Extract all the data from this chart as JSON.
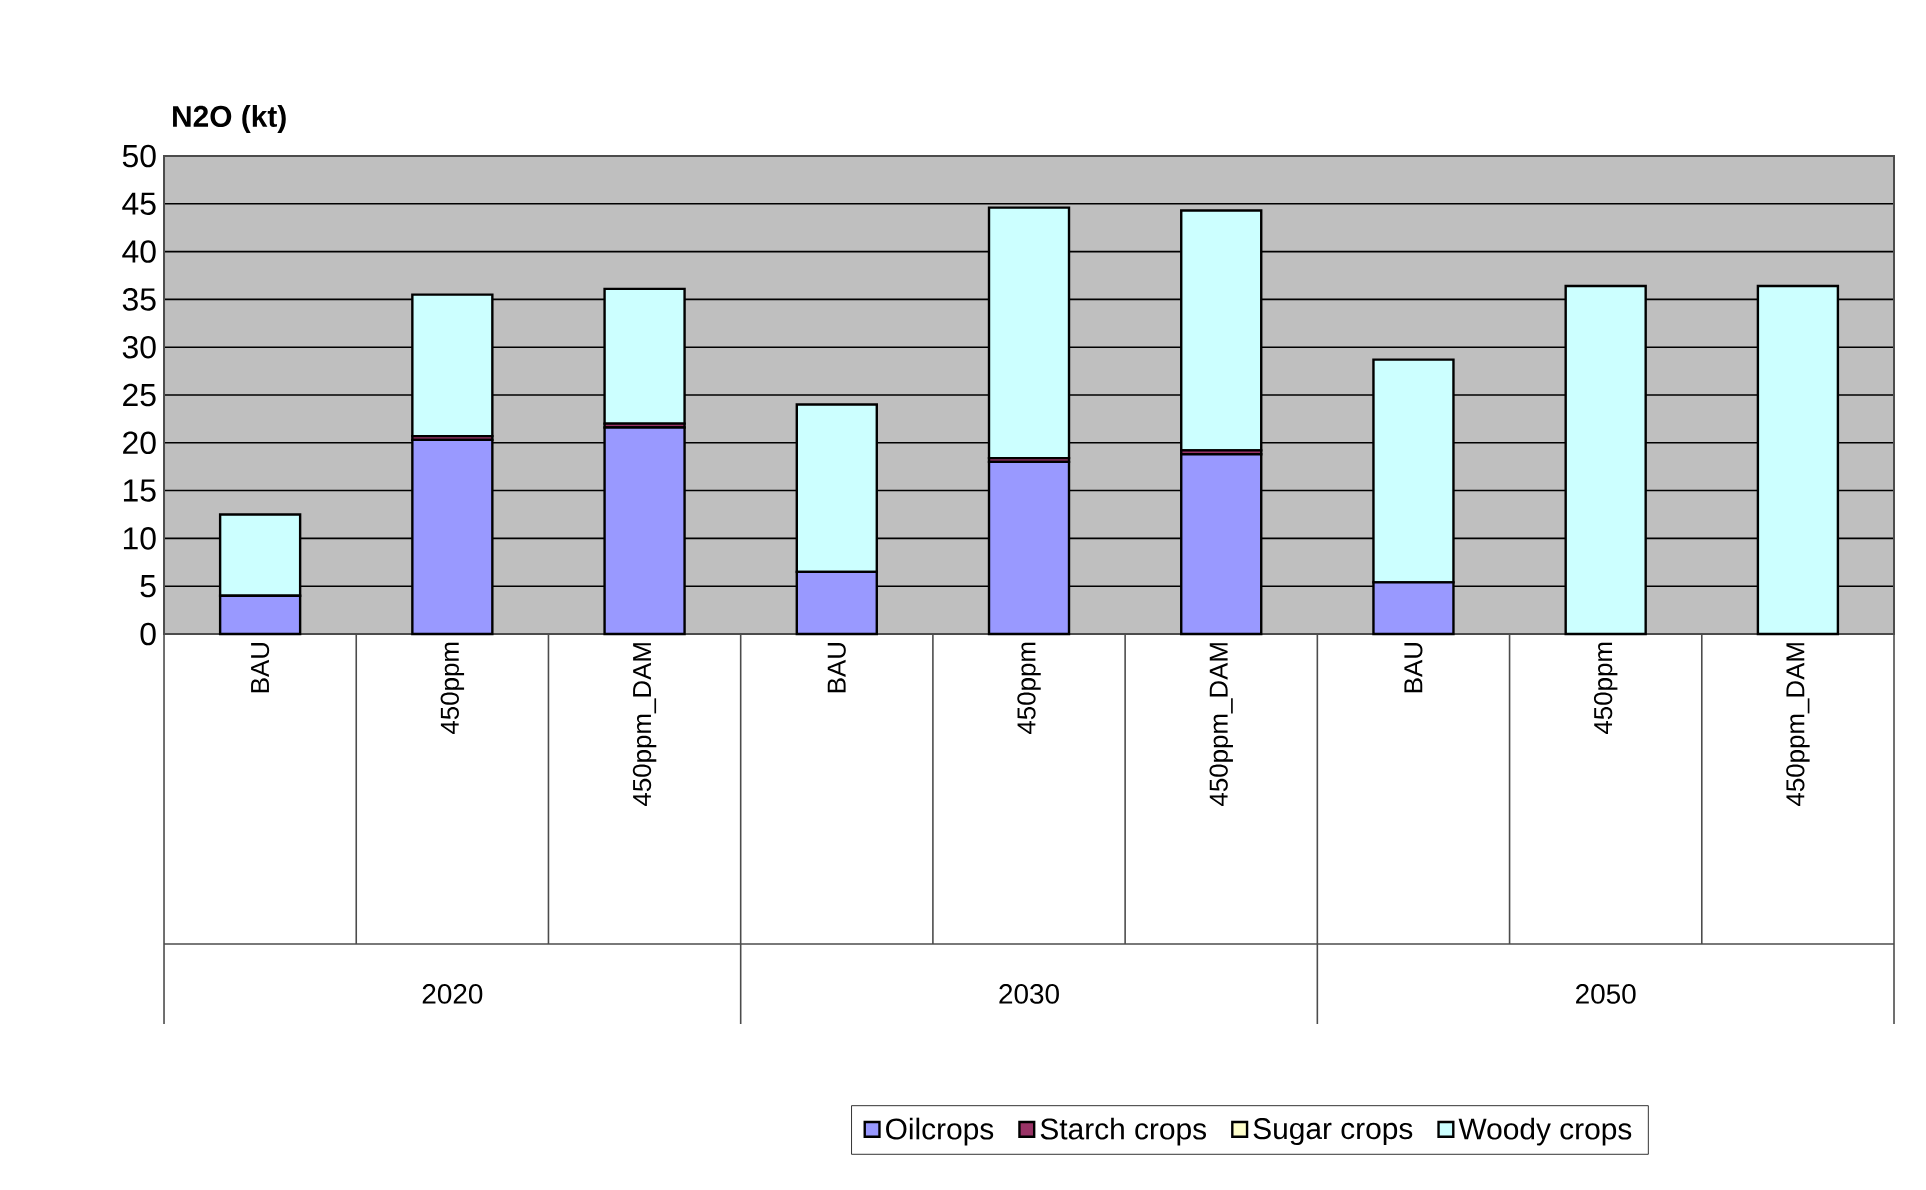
{
  "chart_data": {
    "type": "bar",
    "stacked": true,
    "ylabel": "N2O (kt)",
    "categories": [
      "BAU",
      "450ppm",
      "450ppm_DAM",
      "BAU",
      "450ppm",
      "450ppm_DAM",
      "BAU",
      "450ppm",
      "450ppm_DAM"
    ],
    "annotations": [
      "2020",
      "2030",
      "2050"
    ],
    "series": [
      {
        "name": "Oilcrops",
        "color": "#9999ff",
        "values": [
          4.0,
          20.3,
          21.6,
          6.5,
          18.0,
          18.8,
          5.4,
          0,
          0
        ]
      },
      {
        "name": "Starch crops",
        "color": "#993366",
        "values": [
          0,
          0.4,
          0.4,
          0,
          0.4,
          0.4,
          0,
          0,
          0
        ]
      },
      {
        "name": "Sugar crops",
        "color": "#ffffcc",
        "values": [
          0,
          0,
          0,
          0,
          0,
          0,
          0,
          0,
          0
        ]
      },
      {
        "name": "Woody crops",
        "color": "#ccffff",
        "values": [
          8.5,
          14.8,
          14.1,
          17.5,
          26.2,
          25.1,
          23.3,
          36.4,
          36.4
        ]
      }
    ],
    "ylim": [
      0,
      50
    ],
    "yticks": [
      0,
      5,
      10,
      15,
      20,
      25,
      30,
      35,
      40,
      45,
      50
    ],
    "grid": "y",
    "legend": "bottom"
  }
}
